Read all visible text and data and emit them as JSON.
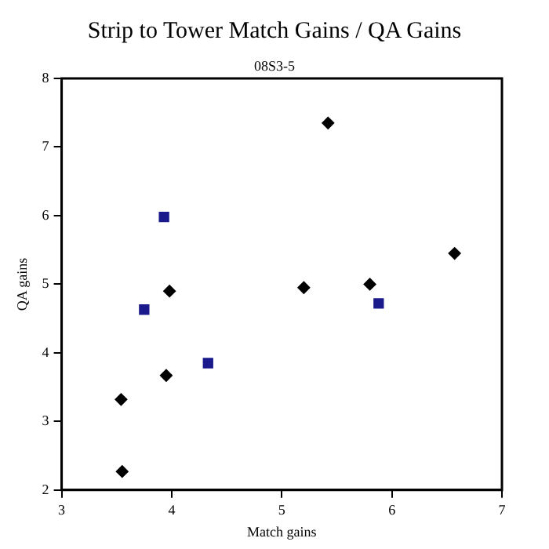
{
  "chart_data": {
    "type": "scatter",
    "title": "Strip to Tower Match Gains / QA Gains",
    "subtitle": "08S3-5",
    "xlabel": "Match gains",
    "ylabel": "QA gains",
    "xlim": [
      3,
      7
    ],
    "xticks": [
      3,
      4,
      5,
      6,
      7
    ],
    "ylim": [
      2,
      8
    ],
    "yticks": [
      2,
      3,
      4,
      5,
      6,
      7,
      8
    ],
    "grid": false,
    "legend": false,
    "series": [
      {
        "color": "#000000",
        "marker": "diamond",
        "x": [
          3.54,
          3.55,
          3.95,
          3.98,
          5.2,
          5.42,
          5.8,
          6.57
        ],
        "values": [
          3.32,
          2.27,
          3.67,
          4.9,
          4.95,
          7.35,
          5.0,
          5.45
        ]
      },
      {
        "color": "#1a1a8c",
        "marker": "square",
        "x": [
          3.93,
          3.75,
          4.33,
          5.88
        ],
        "values": [
          5.98,
          4.63,
          3.85,
          4.72
        ]
      }
    ]
  }
}
